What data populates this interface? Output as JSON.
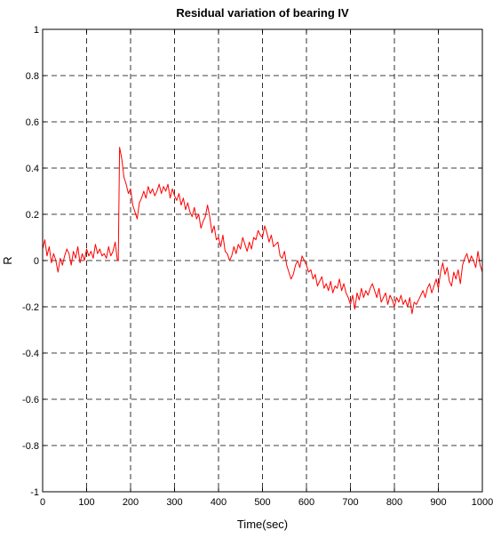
{
  "chart_data": {
    "type": "line",
    "title": "Residual variation of bearing IV",
    "xlabel": "Time(sec)",
    "ylabel": "R",
    "xlim": [
      0,
      1000
    ],
    "ylim": [
      -1,
      1
    ],
    "x_ticks": [
      0,
      100,
      200,
      300,
      400,
      500,
      600,
      700,
      800,
      900,
      1000
    ],
    "y_ticks": [
      -1,
      -0.8,
      -0.6,
      -0.4,
      -0.2,
      0,
      0.2,
      0.4,
      0.6,
      0.8,
      1
    ],
    "x_tick_labels": [
      "0",
      "100",
      "200",
      "300",
      "400",
      "500",
      "600",
      "700",
      "800",
      "900",
      "1000"
    ],
    "y_tick_labels": [
      "-1",
      "-0.8",
      "-0.6",
      "-0.4",
      "-0.2",
      "0",
      "0.2",
      "0.4",
      "0.6",
      "0.8",
      "1"
    ],
    "grid": true,
    "grid_style": "dashed",
    "line_color": "#ff0000",
    "series": [
      {
        "x": [
          0,
          5,
          10,
          15,
          20,
          25,
          30,
          35,
          40,
          45,
          50,
          55,
          60,
          65,
          70,
          75,
          80,
          85,
          90,
          95,
          100,
          105,
          110,
          115,
          120,
          125,
          130,
          135,
          140,
          145,
          150,
          155,
          160,
          165,
          170,
          172,
          175,
          180,
          185,
          190,
          195,
          200,
          205,
          210,
          215,
          220,
          225,
          230,
          235,
          240,
          245,
          250,
          255,
          260,
          265,
          270,
          275,
          280,
          285,
          290,
          295,
          300,
          305,
          310,
          315,
          320,
          325,
          330,
          335,
          340,
          345,
          350,
          355,
          360,
          365,
          370,
          375,
          380,
          385,
          390,
          395,
          400,
          405,
          410,
          415,
          420,
          425,
          430,
          435,
          440,
          445,
          450,
          455,
          460,
          465,
          470,
          475,
          480,
          485,
          490,
          495,
          500,
          505,
          510,
          515,
          520,
          525,
          530,
          535,
          540,
          545,
          550,
          555,
          560,
          565,
          570,
          575,
          580,
          585,
          590,
          595,
          600,
          605,
          610,
          615,
          620,
          625,
          630,
          635,
          640,
          645,
          650,
          655,
          660,
          665,
          670,
          675,
          680,
          685,
          690,
          695,
          700,
          705,
          710,
          715,
          720,
          725,
          730,
          735,
          740,
          745,
          750,
          755,
          760,
          765,
          770,
          775,
          780,
          785,
          790,
          795,
          800,
          805,
          810,
          815,
          820,
          825,
          830,
          835,
          840,
          845,
          850,
          855,
          860,
          865,
          870,
          875,
          880,
          885,
          890,
          895,
          900,
          905,
          910,
          915,
          920,
          925,
          930,
          935,
          940,
          945,
          950,
          955,
          960,
          965,
          970,
          975,
          980,
          985,
          990,
          995,
          1000
        ],
        "y": [
          0.05,
          0.09,
          0.02,
          0.06,
          -0.01,
          0.03,
          0.0,
          -0.05,
          0.01,
          -0.02,
          0.02,
          0.05,
          0.03,
          -0.02,
          0.04,
          0.01,
          0.06,
          -0.01,
          0.03,
          0.0,
          0.05,
          0.02,
          0.04,
          0.01,
          0.07,
          0.03,
          0.05,
          0.02,
          0.03,
          0.01,
          0.06,
          0.02,
          0.04,
          0.08,
          0.0,
          0.0,
          0.49,
          0.44,
          0.36,
          0.33,
          0.29,
          0.31,
          0.24,
          0.21,
          0.18,
          0.25,
          0.27,
          0.3,
          0.27,
          0.32,
          0.29,
          0.31,
          0.28,
          0.3,
          0.33,
          0.29,
          0.32,
          0.3,
          0.33,
          0.27,
          0.31,
          0.28,
          0.26,
          0.29,
          0.24,
          0.27,
          0.22,
          0.25,
          0.21,
          0.19,
          0.23,
          0.18,
          0.2,
          0.14,
          0.17,
          0.19,
          0.24,
          0.19,
          0.12,
          0.15,
          0.09,
          0.1,
          0.06,
          0.11,
          0.04,
          0.03,
          0.0,
          0.02,
          0.06,
          0.03,
          0.07,
          0.05,
          0.1,
          0.07,
          0.04,
          0.08,
          0.05,
          0.1,
          0.09,
          0.13,
          0.11,
          0.1,
          0.15,
          0.12,
          0.08,
          0.11,
          0.06,
          0.07,
          0.08,
          0.02,
          0.01,
          0.04,
          -0.02,
          -0.05,
          -0.08,
          -0.06,
          -0.02,
          0.0,
          -0.03,
          0.02,
          0.0,
          -0.02,
          -0.05,
          -0.04,
          -0.08,
          -0.06,
          -0.11,
          -0.09,
          -0.07,
          -0.12,
          -0.1,
          -0.13,
          -0.09,
          -0.14,
          -0.11,
          -0.12,
          -0.08,
          -0.13,
          -0.1,
          -0.14,
          -0.16,
          -0.19,
          -0.15,
          -0.21,
          -0.14,
          -0.17,
          -0.12,
          -0.16,
          -0.13,
          -0.15,
          -0.12,
          -0.1,
          -0.13,
          -0.16,
          -0.12,
          -0.18,
          -0.16,
          -0.14,
          -0.19,
          -0.15,
          -0.17,
          -0.2,
          -0.16,
          -0.18,
          -0.15,
          -0.19,
          -0.17,
          -0.2,
          -0.16,
          -0.23,
          -0.18,
          -0.19,
          -0.17,
          -0.15,
          -0.13,
          -0.16,
          -0.12,
          -0.1,
          -0.14,
          -0.11,
          -0.08,
          -0.12,
          -0.05,
          -0.01,
          -0.06,
          -0.03,
          -0.09,
          -0.11,
          -0.05,
          -0.08,
          -0.04,
          -0.1,
          -0.02,
          0.01,
          0.03,
          -0.01,
          0.02,
          0.0,
          -0.03,
          0.04,
          -0.02,
          -0.05
        ]
      }
    ]
  }
}
